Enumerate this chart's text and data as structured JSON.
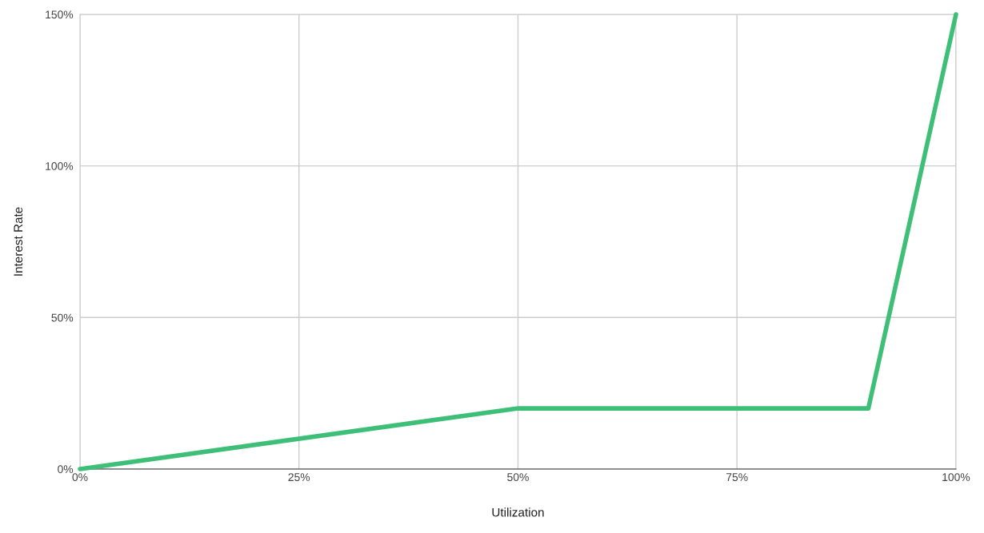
{
  "chart_data": {
    "type": "line",
    "xlabel": "Utilization",
    "ylabel": "Interest Rate",
    "x": [
      0,
      50,
      90,
      100
    ],
    "series": [
      {
        "color": "#3dbf78",
        "values": [
          0,
          20,
          20,
          150
        ]
      }
    ],
    "xlim": [
      0,
      100
    ],
    "ylim": [
      0,
      150
    ],
    "xticks": [
      {
        "value": 0,
        "label": "0%"
      },
      {
        "value": 25,
        "label": "25%"
      },
      {
        "value": 50,
        "label": "50%"
      },
      {
        "value": 75,
        "label": "75%"
      },
      {
        "value": 100,
        "label": "100%"
      }
    ],
    "yticks": [
      {
        "value": 0,
        "label": "0%"
      },
      {
        "value": 50,
        "label": "50%"
      },
      {
        "value": 100,
        "label": "100%"
      },
      {
        "value": 150,
        "label": "150%"
      }
    ],
    "grid": true,
    "marker": "none",
    "line_style": "solid"
  }
}
